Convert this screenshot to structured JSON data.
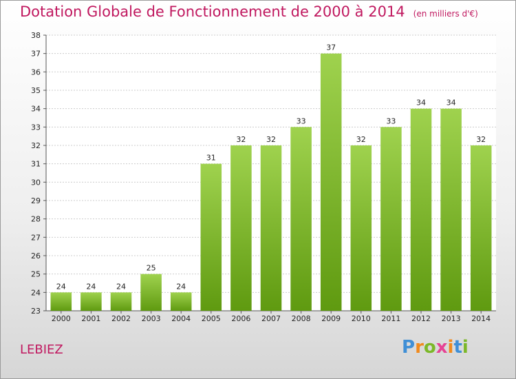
{
  "header": {
    "title": "Dotation Globale de Fonctionnement de 2000 à 2014",
    "subtitle": "(en milliers d'€)"
  },
  "footer": {
    "commune": "LEBIEZ",
    "logo_text": "Proxiti"
  },
  "colors": {
    "title": "#c0185f",
    "bar_light": "#9fd24e",
    "bar_dark": "#5f9a10",
    "grid": "#cccccc",
    "axis": "#555555"
  },
  "chart_data": {
    "type": "bar",
    "categories": [
      "2000",
      "2001",
      "2002",
      "2003",
      "2004",
      "2005",
      "2006",
      "2007",
      "2008",
      "2009",
      "2010",
      "2011",
      "2012",
      "2013",
      "2014"
    ],
    "values": [
      24,
      24,
      24,
      25,
      24,
      31,
      32,
      32,
      33,
      37,
      32,
      33,
      34,
      34,
      32
    ],
    "title": "Dotation Globale de Fonctionnement de 2000 à 2014",
    "subtitle": "(en milliers d'€)",
    "xlabel": "",
    "ylabel": "",
    "ylim": [
      23,
      38
    ],
    "yticks": [
      23,
      24,
      25,
      26,
      27,
      28,
      29,
      30,
      31,
      32,
      33,
      34,
      35,
      36,
      37,
      38
    ],
    "grid": true,
    "legend": "none"
  }
}
